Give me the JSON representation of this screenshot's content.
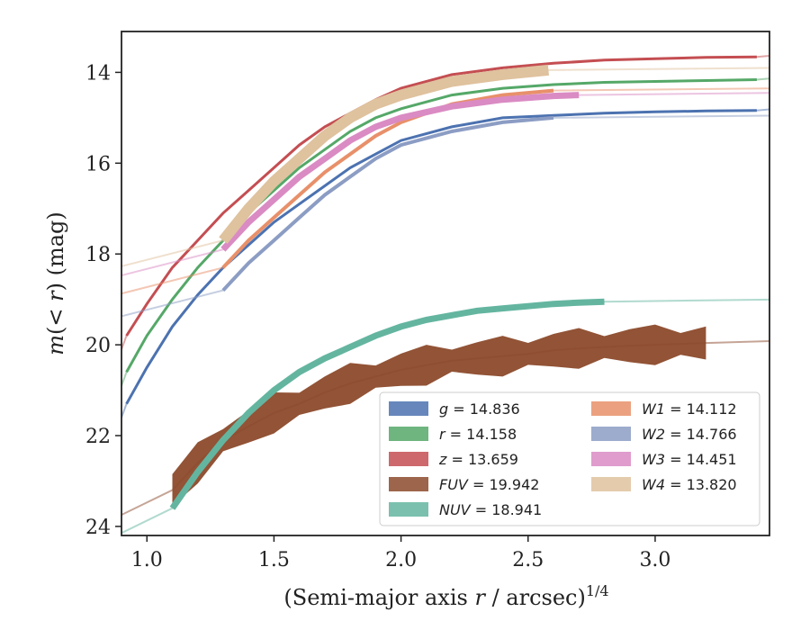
{
  "chart_data": {
    "type": "line",
    "xlabel": "(Semi-major axis r / arcsec)^{1/4}",
    "xlabel_parts": {
      "pre": "(Semi-major axis ",
      "var": "r",
      "post": " / arcsec)",
      "sup": "1/4"
    },
    "ylabel": "m(<r) (mag)",
    "ylabel_parts": {
      "a": "m",
      "b": "(< ",
      "c": "r",
      "d": ")",
      "e": " (mag)"
    },
    "xlim": [
      0.9,
      3.45
    ],
    "ylim": [
      24.2,
      13.1
    ],
    "y_inverted": true,
    "xticks": [
      1.0,
      1.5,
      2.0,
      2.5,
      3.0
    ],
    "xtick_labels": [
      "1.0",
      "1.5",
      "2.0",
      "2.5",
      "3.0"
    ],
    "yticks": [
      14,
      16,
      18,
      20,
      22,
      24
    ],
    "ytick_labels": [
      "14",
      "16",
      "18",
      "20",
      "22",
      "24"
    ],
    "legend_position": "lower-right",
    "series": [
      {
        "name": "g",
        "value": "14.836",
        "color": "#4C72B0",
        "x": [
          0.92,
          1.0,
          1.1,
          1.2,
          1.3,
          1.4,
          1.5,
          1.6,
          1.7,
          1.8,
          1.9,
          2.0,
          2.2,
          2.4,
          2.6,
          2.8,
          3.0,
          3.2,
          3.4
        ],
        "y": [
          21.3,
          20.5,
          19.6,
          18.9,
          18.3,
          17.8,
          17.3,
          16.9,
          16.5,
          16.1,
          15.8,
          15.5,
          15.2,
          15.0,
          14.95,
          14.9,
          14.87,
          14.85,
          14.84
        ]
      },
      {
        "name": "r",
        "value": "14.158",
        "color": "#55A868",
        "x": [
          0.92,
          1.0,
          1.1,
          1.2,
          1.3,
          1.4,
          1.5,
          1.6,
          1.7,
          1.8,
          1.9,
          2.0,
          2.2,
          2.4,
          2.6,
          2.8,
          3.0,
          3.2,
          3.4
        ],
        "y": [
          20.6,
          19.8,
          19.0,
          18.3,
          17.7,
          17.1,
          16.6,
          16.1,
          15.7,
          15.3,
          15.0,
          14.8,
          14.5,
          14.35,
          14.27,
          14.22,
          14.2,
          14.18,
          14.16
        ]
      },
      {
        "name": "z",
        "value": "13.659",
        "color": "#C44E52",
        "x": [
          0.92,
          1.0,
          1.1,
          1.2,
          1.3,
          1.4,
          1.5,
          1.6,
          1.7,
          1.8,
          1.9,
          2.0,
          2.2,
          2.4,
          2.6,
          2.8,
          3.0,
          3.2,
          3.4
        ],
        "y": [
          19.8,
          19.1,
          18.3,
          17.7,
          17.1,
          16.6,
          16.1,
          15.6,
          15.2,
          14.9,
          14.6,
          14.35,
          14.05,
          13.9,
          13.8,
          13.73,
          13.7,
          13.67,
          13.66
        ]
      },
      {
        "name": "FUV",
        "value": "19.942",
        "color": "#8C4A2B",
        "x": [
          1.1,
          1.2,
          1.3,
          1.4,
          1.5,
          1.6,
          1.7,
          1.8,
          1.9,
          2.0,
          2.1,
          2.2,
          2.3,
          2.4,
          2.5,
          2.6,
          2.7,
          2.8,
          2.9,
          3.0,
          3.1,
          3.2
        ],
        "y": [
          23.2,
          22.6,
          22.1,
          21.8,
          21.5,
          21.3,
          21.05,
          20.85,
          20.7,
          20.55,
          20.45,
          20.35,
          20.3,
          20.25,
          20.2,
          20.12,
          20.08,
          20.05,
          20.02,
          20.0,
          19.98,
          19.96
        ]
      },
      {
        "name": "NUV",
        "value": "18.941",
        "color": "#64B5A0",
        "x": [
          1.1,
          1.2,
          1.3,
          1.4,
          1.5,
          1.6,
          1.7,
          1.8,
          1.9,
          2.0,
          2.1,
          2.2,
          2.3,
          2.4,
          2.5,
          2.6,
          2.7,
          2.8
        ],
        "y": [
          23.6,
          22.8,
          22.1,
          21.5,
          21.0,
          20.6,
          20.3,
          20.05,
          19.8,
          19.6,
          19.45,
          19.35,
          19.25,
          19.2,
          19.15,
          19.1,
          19.07,
          19.05
        ]
      },
      {
        "name": "W1",
        "value": "14.112",
        "color": "#E8906A",
        "x": [
          1.3,
          1.4,
          1.5,
          1.6,
          1.7,
          1.8,
          1.9,
          2.0,
          2.2,
          2.4,
          2.6
        ],
        "y": [
          18.3,
          17.7,
          17.2,
          16.7,
          16.2,
          15.8,
          15.4,
          15.1,
          14.7,
          14.5,
          14.4
        ]
      },
      {
        "name": "W2",
        "value": "14.766",
        "color": "#8C9DC4",
        "x": [
          1.3,
          1.4,
          1.5,
          1.6,
          1.7,
          1.8,
          1.9,
          2.0,
          2.2,
          2.4,
          2.6
        ],
        "y": [
          18.8,
          18.2,
          17.7,
          17.2,
          16.7,
          16.3,
          15.9,
          15.6,
          15.3,
          15.1,
          15.0
        ]
      },
      {
        "name": "W3",
        "value": "14.451",
        "color": "#DA8BC3",
        "x": [
          1.3,
          1.4,
          1.5,
          1.6,
          1.7,
          1.8,
          1.9,
          2.0,
          2.2,
          2.4,
          2.6,
          2.7
        ],
        "y": [
          17.9,
          17.3,
          16.8,
          16.3,
          15.9,
          15.5,
          15.2,
          15.0,
          14.75,
          14.6,
          14.52,
          14.5
        ]
      },
      {
        "name": "W4",
        "value": "13.820",
        "color": "#DFC29E",
        "x": [
          1.3,
          1.4,
          1.5,
          1.6,
          1.7,
          1.8,
          1.9,
          2.0,
          2.2,
          2.4,
          2.58
        ],
        "y": [
          17.7,
          17.0,
          16.4,
          15.9,
          15.4,
          15.0,
          14.7,
          14.5,
          14.2,
          14.05,
          13.95
        ]
      }
    ]
  }
}
